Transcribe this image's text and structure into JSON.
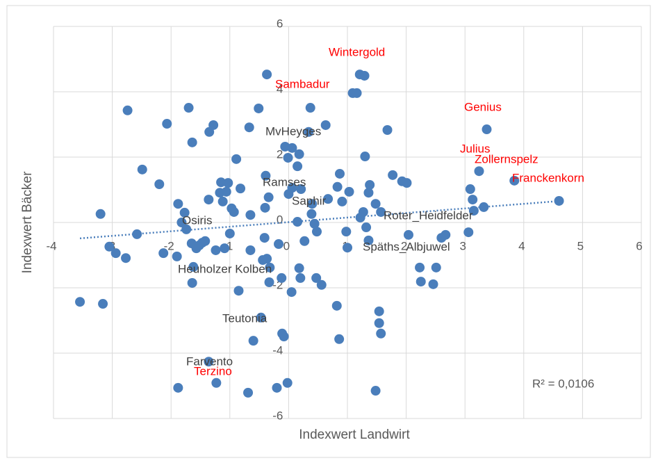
{
  "chart_data": {
    "type": "scatter",
    "x_label": "Indexwert Landwirt",
    "y_label": "Indexwert Bäcker",
    "xlim": [
      -4,
      6
    ],
    "ylim": [
      -6,
      6
    ],
    "xticks": [
      -4,
      -3,
      -2,
      -1,
      0,
      1,
      2,
      3,
      4,
      5,
      6
    ],
    "yticks": [
      -6,
      -4,
      -2,
      0,
      2,
      4,
      6
    ],
    "grid": true,
    "color": "#4a7ebb",
    "x": [
      -3.55,
      -3.16,
      -3.2,
      -3.05,
      -2.94,
      -2.77,
      -2.74,
      -2.58,
      -2.49,
      -2.2,
      -2.13,
      -2.07,
      -1.9,
      -1.88,
      -1.88,
      -1.82,
      -1.77,
      -1.74,
      -1.7,
      -1.64,
      -1.65,
      -1.64,
      -1.62,
      -1.57,
      -1.52,
      -1.47,
      -1.42,
      -1.36,
      -1.35,
      -1.28,
      -1.36,
      -1.24,
      -1.23,
      -1.17,
      -1.15,
      -1.12,
      -1.09,
      -1.06,
      -1.03,
      -1.0,
      -0.97,
      -0.93,
      -0.89,
      -0.85,
      -0.82,
      -0.69,
      -0.67,
      -0.65,
      -0.65,
      -0.6,
      -0.51,
      -0.47,
      -0.44,
      -0.41,
      -0.4,
      -0.39,
      -0.37,
      -0.37,
      -0.34,
      -0.33,
      -0.32,
      -0.2,
      -0.17,
      -0.12,
      -0.11,
      -0.08,
      -0.06,
      -0.01,
      -0.02,
      0.0,
      0.05,
      0.06,
      0.06,
      0.15,
      0.15,
      0.18,
      0.18,
      0.2,
      0.21,
      0.27,
      0.34,
      0.37,
      0.39,
      0.4,
      0.44,
      0.47,
      0.48,
      0.56,
      0.63,
      0.67,
      0.82,
      0.83,
      0.86,
      0.87,
      0.91,
      0.98,
      1.0,
      1.03,
      1.09,
      1.16,
      1.21,
      1.29,
      1.3,
      1.22,
      1.27,
      1.32,
      1.36,
      1.36,
      1.38,
      1.48,
      1.48,
      1.54,
      1.54,
      1.57,
      1.57,
      1.68,
      1.77,
      1.93,
      2.01,
      2.04,
      2.23,
      2.25,
      2.46,
      2.51,
      2.6,
      2.67,
      3.06,
      3.09,
      3.13,
      3.15,
      3.24,
      3.32,
      3.37,
      3.84,
      4.6
    ],
    "values": [
      -2.43,
      -2.49,
      0.26,
      -0.74,
      -0.94,
      -1.09,
      3.43,
      -0.36,
      1.62,
      1.17,
      -0.94,
      3.02,
      -1.04,
      0.57,
      -5.06,
      0.0,
      0.3,
      -0.21,
      3.51,
      2.45,
      -0.64,
      -1.85,
      -1.36,
      -0.79,
      -0.7,
      -0.62,
      -0.57,
      0.7,
      2.77,
      2.98,
      -4.26,
      -0.85,
      -4.91,
      0.91,
      1.23,
      0.64,
      -0.79,
      0.94,
      1.21,
      -0.34,
      0.43,
      0.32,
      1.94,
      -2.09,
      1.04,
      -5.21,
      2.91,
      0.23,
      -0.85,
      -3.62,
      3.49,
      -2.91,
      -1.15,
      -0.47,
      0.45,
      1.43,
      4.53,
      -1.11,
      0.77,
      -1.83,
      -1.38,
      -5.06,
      -0.66,
      -1.7,
      -3.4,
      -3.49,
      2.32,
      1.98,
      -4.91,
      0.87,
      -2.13,
      2.28,
      1.06,
      0.02,
      1.72,
      2.09,
      -1.4,
      -1.7,
      1.02,
      -0.57,
      2.77,
      3.51,
      0.26,
      0.57,
      -0.04,
      -1.7,
      -0.28,
      -1.91,
      2.98,
      0.72,
      -2.55,
      1.09,
      -3.57,
      1.49,
      0.64,
      -0.28,
      -0.77,
      0.94,
      3.96,
      3.96,
      4.53,
      4.49,
      2.02,
      0.15,
      0.32,
      -0.15,
      0.91,
      -0.55,
      1.15,
      0.57,
      -5.15,
      -2.72,
      -3.08,
      -3.4,
      0.32,
      2.83,
      1.45,
      1.26,
      1.21,
      -0.38,
      -1.38,
      -1.81,
      -1.89,
      -1.38,
      -0.47,
      -0.38,
      -0.3,
      1.02,
      0.7,
      0.36,
      1.57,
      0.47,
      2.85,
      1.28,
      0.66
    ],
    "trendline": {
      "slope": 0.14,
      "intercept": 0.01,
      "color": "#4a7ebb",
      "label": "R² = 0,0106"
    },
    "annotations": [
      {
        "text": "Wintergold",
        "color": "#ff0000"
      },
      {
        "text": "Sambadur",
        "color": "#ff0000"
      },
      {
        "text": "Genius",
        "color": "#ff0000"
      },
      {
        "text": "MvHeyges",
        "color": "#404040"
      },
      {
        "text": "Julius",
        "color": "#ff0000"
      },
      {
        "text": "Zollernspelz",
        "color": "#ff0000"
      },
      {
        "text": "Franckenkorn",
        "color": "#ff0000"
      },
      {
        "text": "Ramses",
        "color": "#404040"
      },
      {
        "text": "Saphir",
        "color": "#404040"
      },
      {
        "text": "Roter_Heidfelder",
        "color": "#404040"
      },
      {
        "text": "Osiris",
        "color": "#404040"
      },
      {
        "text": "Späths_Albjuwel",
        "color": "#404040"
      },
      {
        "text": "Heuholzer Kolben",
        "color": "#404040"
      },
      {
        "text": "Teutonia",
        "color": "#404040"
      },
      {
        "text": "Farvento",
        "color": "#404040"
      },
      {
        "text": "Terzino",
        "color": "#ff0000"
      }
    ]
  }
}
